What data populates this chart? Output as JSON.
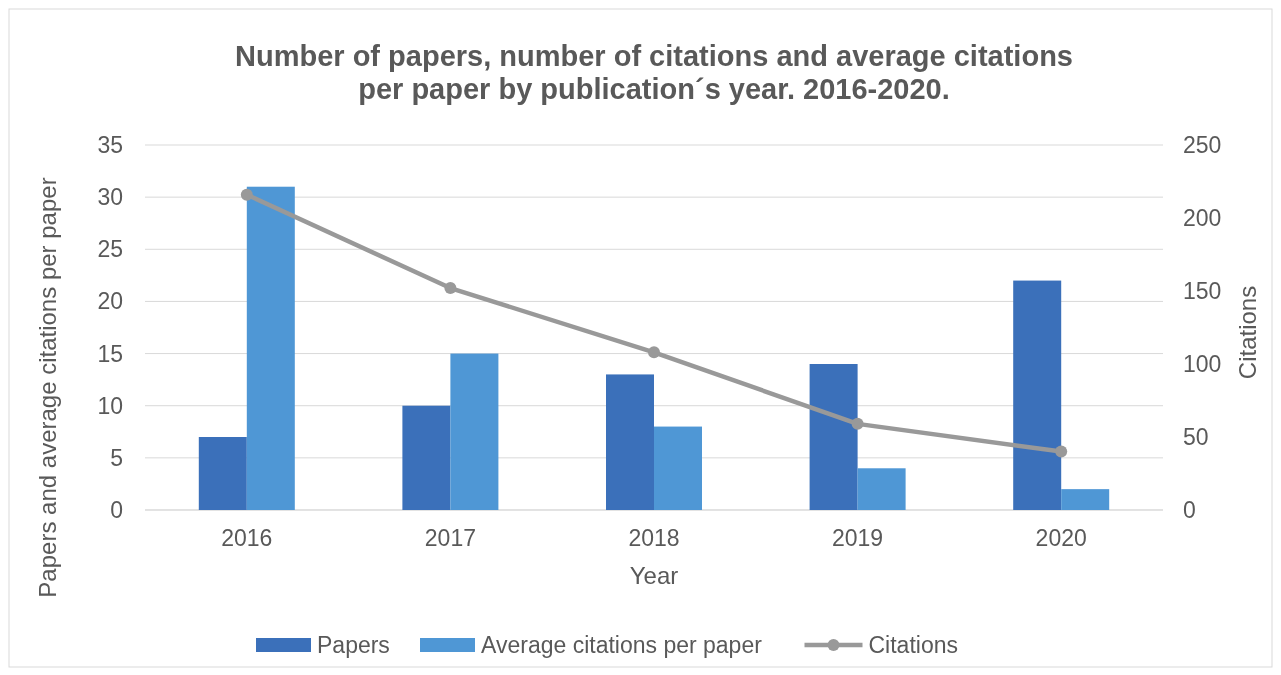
{
  "chart_data": {
    "type": "bar",
    "title": "Number of papers, number of citations and average citations per paper by publication´s year. 2016-2020.",
    "xlabel": "Year",
    "ylabel": "Papers and average citations per paper",
    "y2label": "Citations",
    "categories": [
      "2016",
      "2017",
      "2018",
      "2019",
      "2020"
    ],
    "series": [
      {
        "name": "Papers",
        "color": "#3b70ba",
        "values": [
          7,
          10,
          13,
          14,
          22
        ]
      },
      {
        "name": "Average citations per paper",
        "color": "#4f97d5",
        "values": [
          31,
          15,
          8,
          4,
          2
        ]
      },
      {
        "name": "Citations",
        "type": "line",
        "axis": "y2",
        "color": "#999999",
        "marker": "circle",
        "values": [
          216,
          152,
          108,
          59,
          40
        ]
      }
    ],
    "ylim": [
      0,
      35
    ],
    "yticks": [
      0,
      5,
      10,
      15,
      20,
      25,
      30,
      35
    ],
    "y2lim": [
      0,
      250
    ],
    "y2ticks": [
      0,
      50,
      100,
      150,
      200,
      250
    ],
    "grid": "y",
    "legend": "bottom"
  }
}
